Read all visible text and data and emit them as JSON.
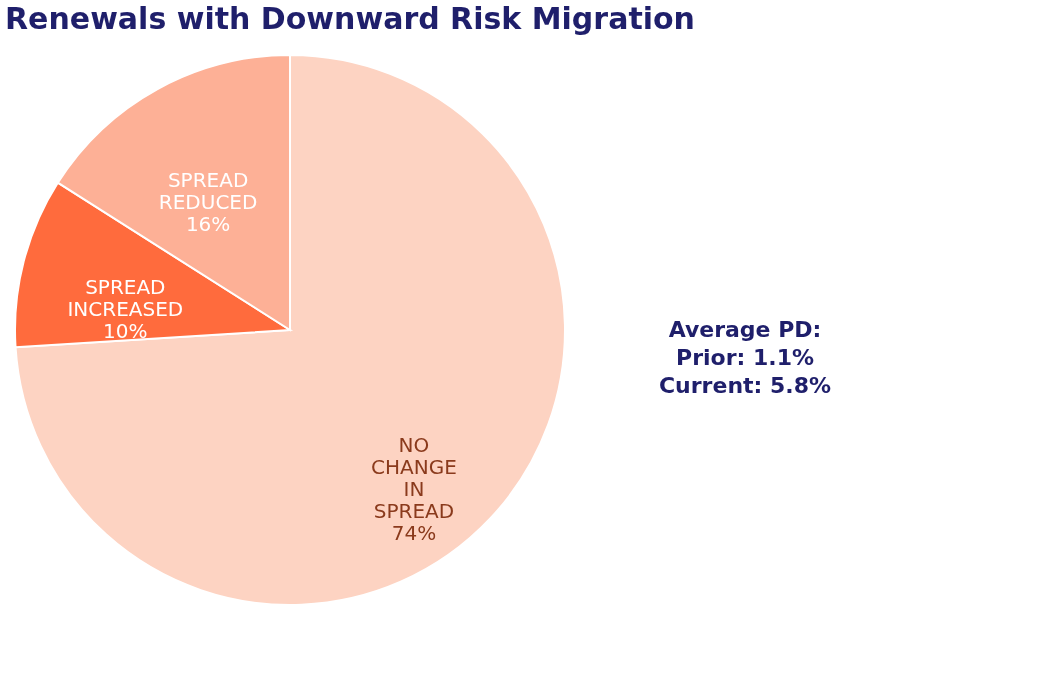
{
  "chart_data": {
    "type": "pie",
    "title": "Renewals with Downward Risk Migration",
    "categories": [
      "NO CHANGE IN SPREAD",
      "SPREAD INCREASED",
      "SPREAD REDUCED"
    ],
    "values": [
      74,
      10,
      16
    ],
    "value_labels": [
      "74%",
      "10%",
      "16%"
    ],
    "colors": [
      "#fdd3c2",
      "#ff6b3d",
      "#fdb096"
    ],
    "annotations": [
      "Average PD:\nPrior: 1.1%\nCurrent: 5.8%"
    ],
    "legend": false
  }
}
